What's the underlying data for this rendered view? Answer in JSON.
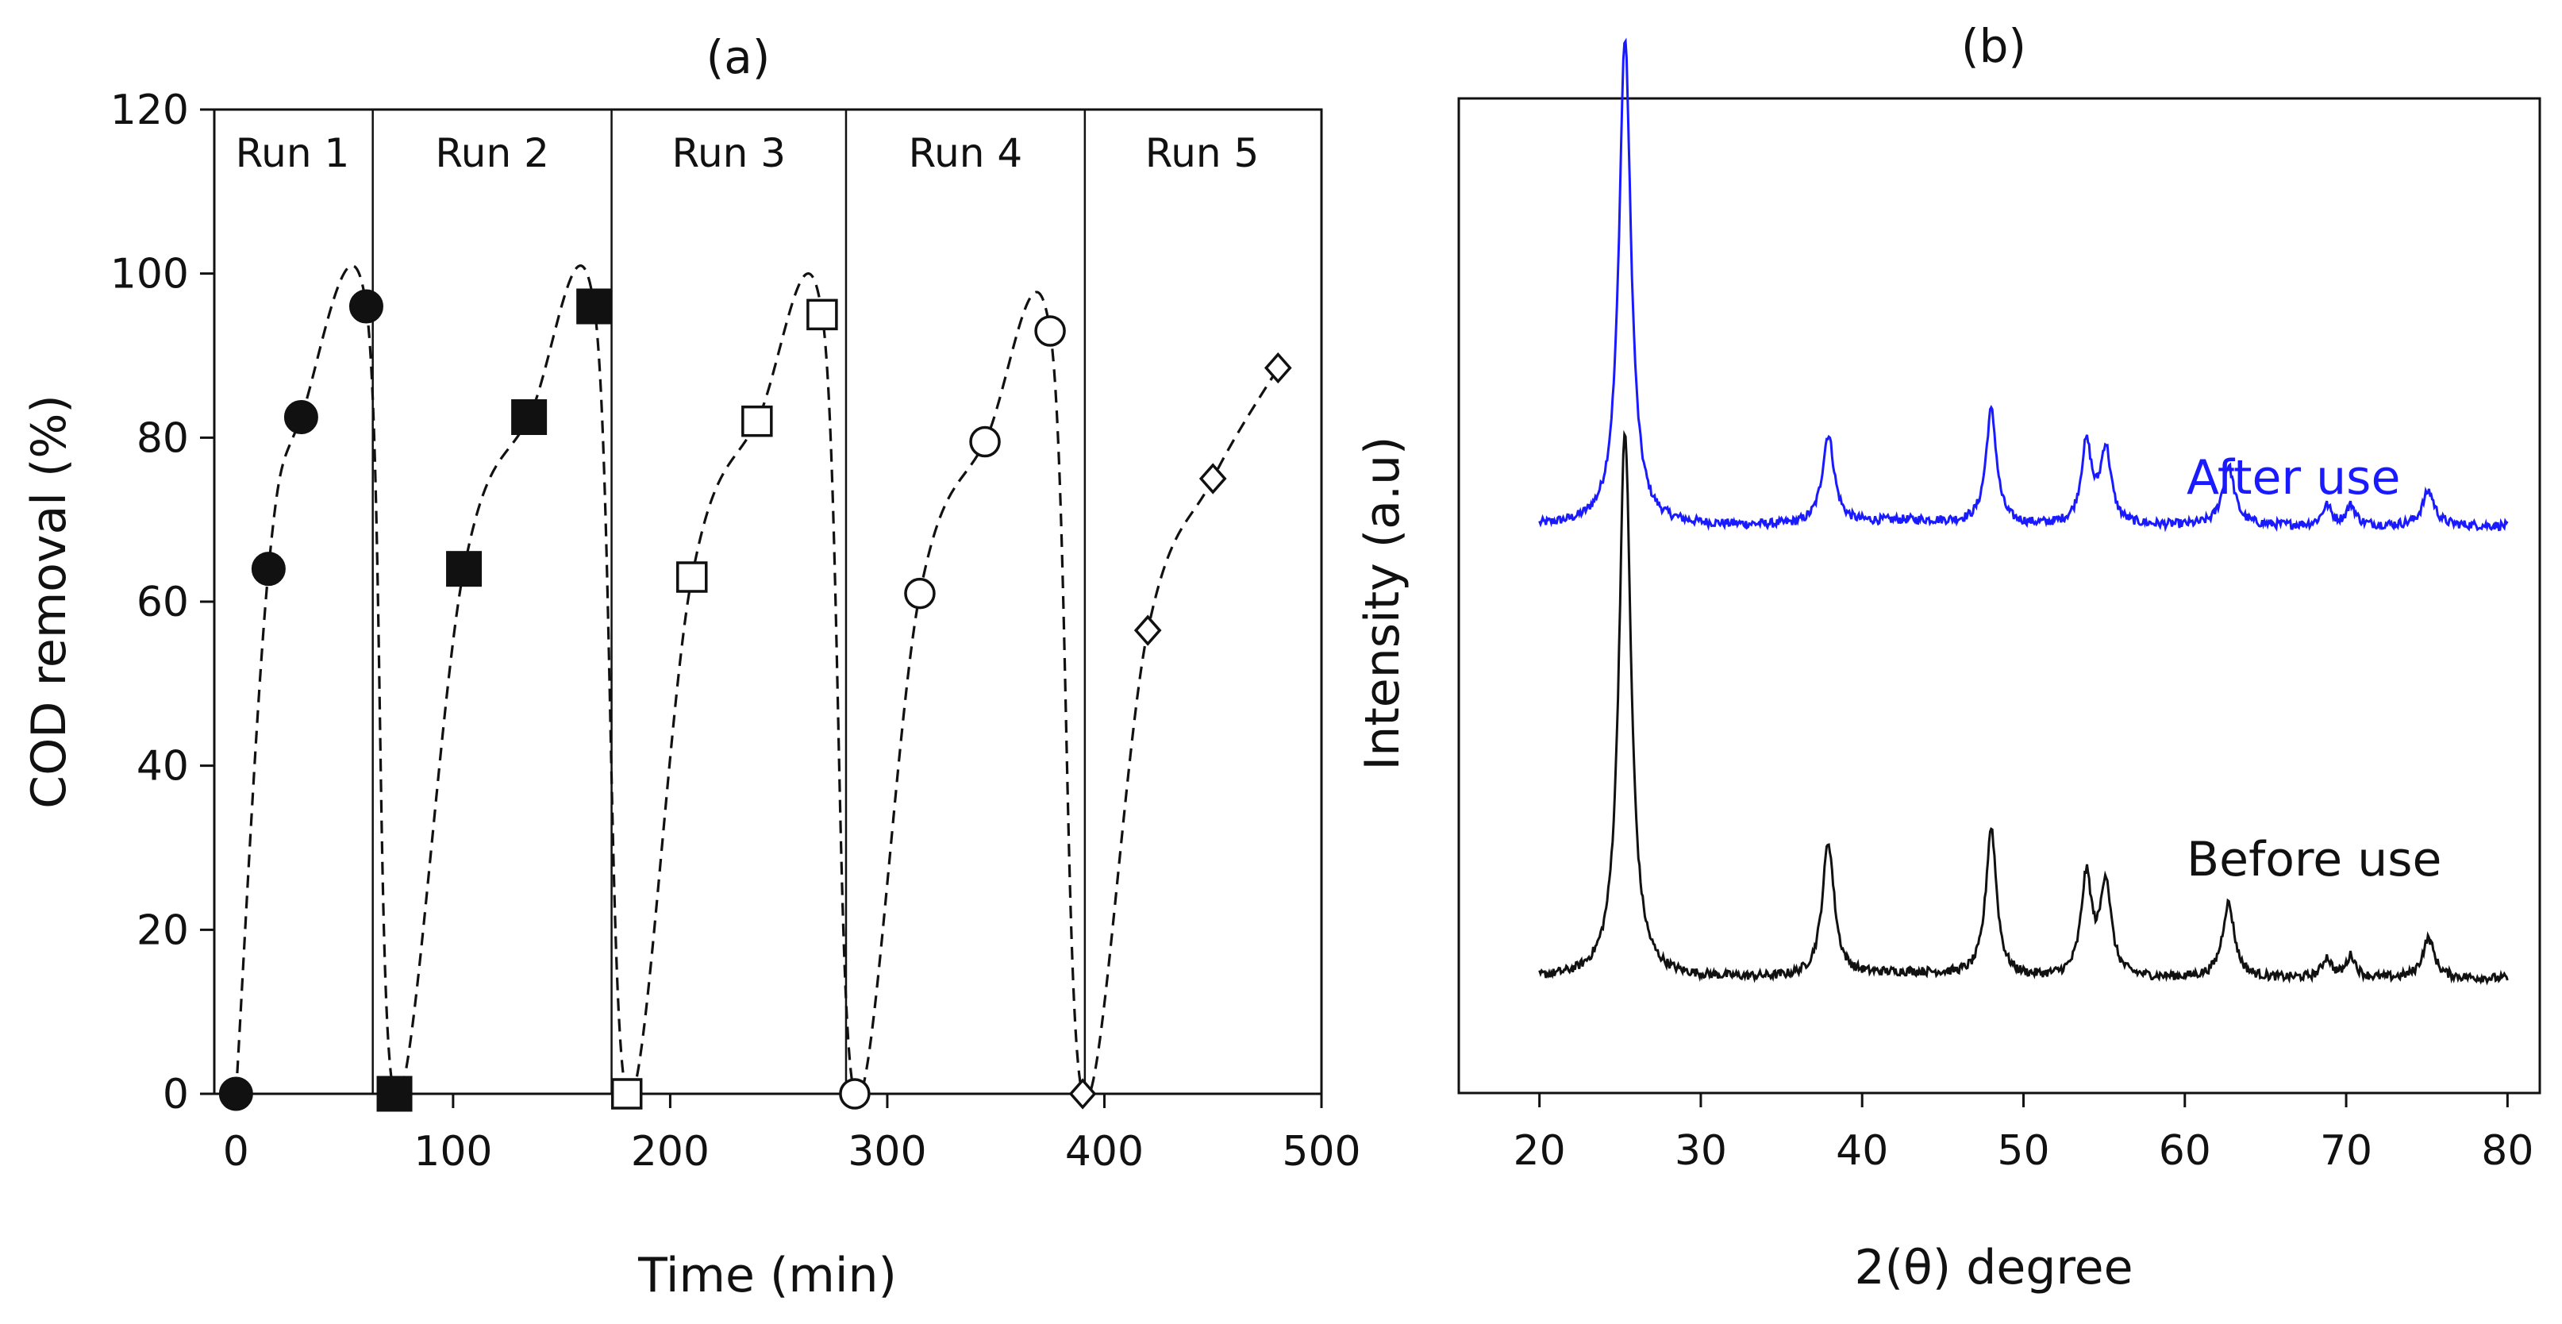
{
  "chart_data": [
    {
      "panel": "(a)",
      "type": "scatter",
      "title": "(a)",
      "xlabel": "Time (min)",
      "ylabel": "COD removal (%)",
      "xlim": [
        -10,
        500
      ],
      "ylim": [
        0,
        120
      ],
      "xticks": [
        0,
        100,
        200,
        300,
        400,
        500
      ],
      "yticks": [
        0,
        20,
        40,
        60,
        80,
        100,
        120
      ],
      "run_dividers": [
        63,
        173,
        281,
        391
      ],
      "runs": [
        {
          "label": "Run 1",
          "center": 26
        },
        {
          "label": "Run 2",
          "center": 118
        },
        {
          "label": "Run 3",
          "center": 227
        },
        {
          "label": "Run 4",
          "center": 336
        },
        {
          "label": "Run 5",
          "center": 445
        }
      ],
      "series": [
        {
          "name": "Run 1",
          "marker": "filled-circle",
          "x": [
            0,
            15,
            30,
            60
          ],
          "y": [
            0,
            64,
            82.5,
            96
          ]
        },
        {
          "name": "Run 2",
          "marker": "filled-square",
          "x": [
            73,
            105,
            135,
            165
          ],
          "y": [
            0,
            64,
            82.5,
            96
          ]
        },
        {
          "name": "Run 3",
          "marker": "open-square",
          "x": [
            180,
            210,
            240,
            270
          ],
          "y": [
            0,
            63,
            82,
            95
          ]
        },
        {
          "name": "Run 4",
          "marker": "open-circle",
          "x": [
            285,
            315,
            345,
            375
          ],
          "y": [
            0,
            61,
            79.5,
            93
          ]
        },
        {
          "name": "Run 5",
          "marker": "open-diamond",
          "x": [
            390,
            420,
            450,
            480
          ],
          "y": [
            0,
            56.5,
            75,
            88.5
          ]
        }
      ]
    },
    {
      "panel": "(b)",
      "type": "line",
      "title": "(b)",
      "xlabel": "2(θ) degree",
      "ylabel": "Intensity (a.u)",
      "xlim": [
        15,
        82
      ],
      "ylim": [
        0,
        10
      ],
      "xticks": [
        20,
        30,
        40,
        50,
        60,
        70,
        80
      ],
      "series": [
        {
          "name": "After use",
          "label": "After use",
          "color": "#1a1aff",
          "baseline": 5.7,
          "peaks": [
            {
              "x": 25.3,
              "h": 4.9,
              "w": 0.45
            },
            {
              "x": 37.9,
              "h": 0.9,
              "w": 0.45
            },
            {
              "x": 48.0,
              "h": 1.15,
              "w": 0.4
            },
            {
              "x": 53.9,
              "h": 0.8,
              "w": 0.4
            },
            {
              "x": 55.1,
              "h": 0.75,
              "w": 0.4
            },
            {
              "x": 62.7,
              "h": 0.6,
              "w": 0.45
            },
            {
              "x": 68.8,
              "h": 0.2,
              "w": 0.35
            },
            {
              "x": 70.3,
              "h": 0.2,
              "w": 0.35
            },
            {
              "x": 75.1,
              "h": 0.35,
              "w": 0.45
            }
          ]
        },
        {
          "name": "Before use",
          "label": "Before use",
          "color": "#111111",
          "baseline": 1.15,
          "peaks": [
            {
              "x": 25.3,
              "h": 5.5,
              "w": 0.45
            },
            {
              "x": 37.9,
              "h": 1.35,
              "w": 0.45
            },
            {
              "x": 48.0,
              "h": 1.5,
              "w": 0.4
            },
            {
              "x": 53.9,
              "h": 1.0,
              "w": 0.4
            },
            {
              "x": 55.1,
              "h": 0.95,
              "w": 0.4
            },
            {
              "x": 62.7,
              "h": 0.75,
              "w": 0.45
            },
            {
              "x": 68.8,
              "h": 0.2,
              "w": 0.35
            },
            {
              "x": 70.3,
              "h": 0.22,
              "w": 0.35
            },
            {
              "x": 75.1,
              "h": 0.4,
              "w": 0.45
            }
          ]
        }
      ]
    }
  ]
}
